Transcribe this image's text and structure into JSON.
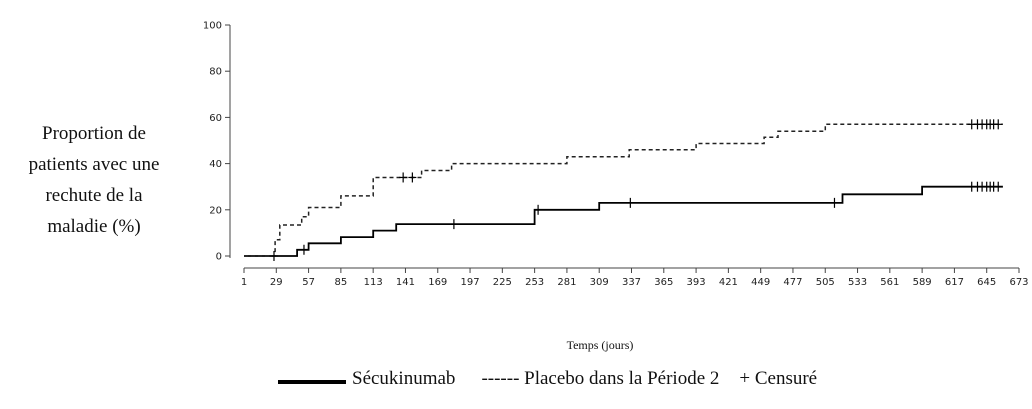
{
  "chart_data": {
    "type": "line",
    "title": "",
    "xlabel": "Temps (jours)",
    "ylabel": "Proportion de\npatients avec une\nrechute de la\nmaladie (%)",
    "xlim": [
      1,
      673
    ],
    "ylim": [
      0,
      100
    ],
    "x_ticks": [
      1,
      29,
      57,
      85,
      113,
      141,
      169,
      197,
      225,
      253,
      281,
      309,
      337,
      365,
      393,
      421,
      449,
      477,
      505,
      533,
      561,
      589,
      617,
      645,
      673
    ],
    "y_ticks": [
      0,
      20,
      40,
      60,
      80,
      100
    ],
    "grid": false,
    "legend_position": "bottom",
    "series": [
      {
        "name": "Sécukinumab",
        "style": "solid",
        "color": "#000000",
        "steps": [
          [
            1,
            0
          ],
          [
            47,
            0
          ],
          [
            47,
            2.7
          ],
          [
            57,
            2.7
          ],
          [
            57,
            5.5
          ],
          [
            85,
            5.5
          ],
          [
            85,
            8.2
          ],
          [
            113,
            8.2
          ],
          [
            113,
            11
          ],
          [
            133,
            11
          ],
          [
            133,
            13.8
          ],
          [
            253,
            13.8
          ],
          [
            253,
            20
          ],
          [
            309,
            20
          ],
          [
            309,
            23
          ],
          [
            520,
            23
          ],
          [
            520,
            26.7
          ],
          [
            589,
            26.7
          ],
          [
            589,
            30
          ],
          [
            659,
            30
          ]
        ],
        "censored": [
          [
            27,
            0
          ],
          [
            53,
            2.7
          ],
          [
            183,
            13.8
          ],
          [
            256,
            20
          ],
          [
            336,
            23
          ],
          [
            513,
            23
          ],
          [
            632,
            30
          ],
          [
            637,
            30
          ],
          [
            641,
            30
          ],
          [
            645,
            30
          ],
          [
            648,
            30
          ],
          [
            651,
            30
          ],
          [
            655,
            30
          ]
        ]
      },
      {
        "name": "Placebo dans la Période 2",
        "style": "dashed",
        "color": "#222222",
        "steps": [
          [
            1,
            0
          ],
          [
            28,
            0
          ],
          [
            28,
            7
          ],
          [
            32,
            7
          ],
          [
            32,
            13.4
          ],
          [
            51,
            13.4
          ],
          [
            51,
            17
          ],
          [
            57,
            17
          ],
          [
            57,
            21
          ],
          [
            85,
            21
          ],
          [
            85,
            26
          ],
          [
            113,
            26
          ],
          [
            113,
            34
          ],
          [
            155,
            34
          ],
          [
            155,
            37
          ],
          [
            181,
            37
          ],
          [
            181,
            40
          ],
          [
            281,
            40
          ],
          [
            281,
            43
          ],
          [
            335,
            43
          ],
          [
            335,
            46
          ],
          [
            393,
            46
          ],
          [
            393,
            48.7
          ],
          [
            452,
            48.7
          ],
          [
            452,
            51.4
          ],
          [
            464,
            51.4
          ],
          [
            464,
            54
          ],
          [
            505,
            54
          ],
          [
            505,
            57
          ],
          [
            659,
            57
          ]
        ],
        "censored": [
          [
            139,
            34
          ],
          [
            147,
            34
          ],
          [
            632,
            57
          ],
          [
            637,
            57
          ],
          [
            641,
            57
          ],
          [
            645,
            57
          ],
          [
            648,
            57
          ],
          [
            651,
            57
          ],
          [
            655,
            57
          ]
        ]
      }
    ],
    "legend": {
      "solid_label": "Sécukinumab",
      "dashed_label": "------ Placebo dans la Période 2",
      "censored_label": "+ Censuré"
    }
  }
}
